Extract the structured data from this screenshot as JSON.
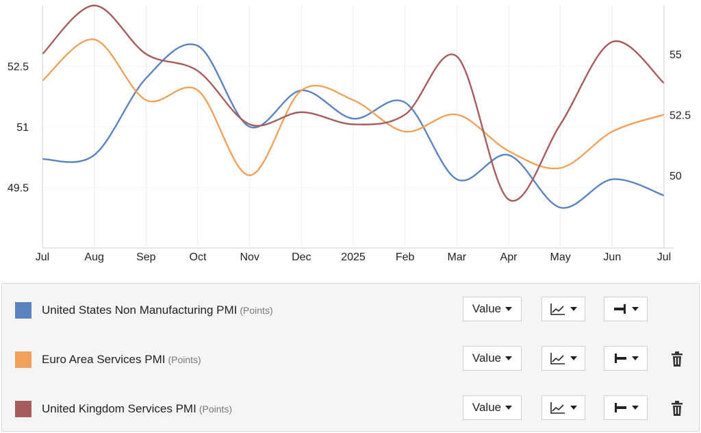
{
  "chart_data": {
    "type": "line",
    "x_labels": [
      "Jul",
      "Aug",
      "Sep",
      "Oct",
      "Nov",
      "Dec",
      "2025",
      "Feb",
      "Mar",
      "Apr",
      "May",
      "Jun",
      "Jul"
    ],
    "left_axis": {
      "ticks": [
        "49.5",
        "51",
        "52.5"
      ],
      "ylim": [
        48,
        54
      ]
    },
    "right_axis": {
      "ticks": [
        "50",
        "52.5",
        "55"
      ],
      "ylim": [
        47,
        57
      ]
    },
    "grid": true,
    "legend_position": "bottom-panel",
    "series": [
      {
        "name": "United States Non Manufacturing PMI",
        "unit": "(Points)",
        "axis": "left",
        "color": "#5b83bf",
        "values": [
          50.2,
          50.3,
          52.2,
          53.0,
          51.0,
          51.9,
          51.2,
          51.6,
          49.7,
          50.3,
          49.0,
          49.7,
          49.3
        ]
      },
      {
        "name": "Euro Area Services PMI",
        "unit": "(Points)",
        "axis": "right",
        "color": "#f0a25b",
        "values": [
          53.9,
          55.6,
          53.1,
          53.5,
          50.0,
          53.5,
          53.1,
          51.8,
          52.5,
          51.0,
          50.3,
          51.8,
          52.5
        ]
      },
      {
        "name": "United Kingdom Services PMI",
        "unit": "(Points)",
        "axis": "right",
        "color": "#a65c5c",
        "values": [
          55.0,
          57.0,
          55.0,
          54.3,
          52.1,
          52.6,
          52.1,
          52.5,
          54.9,
          49.0,
          52.1,
          55.5,
          53.8
        ]
      }
    ]
  },
  "legend_panel": {
    "rows": [
      {
        "name": "United States Non Manufacturing PMI",
        "unit": "(Points)",
        "color": "#5b83bf",
        "value_label": "Value",
        "deletable": false
      },
      {
        "name": "Euro Area Services PMI",
        "unit": "(Points)",
        "color": "#f0a25b",
        "value_label": "Value",
        "deletable": true
      },
      {
        "name": "United Kingdom Services PMI",
        "unit": "(Points)",
        "color": "#a65c5c",
        "value_label": "Value",
        "deletable": true
      }
    ]
  }
}
